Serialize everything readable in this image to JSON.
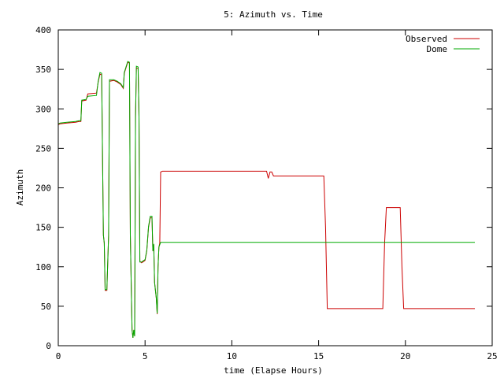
{
  "chart_data": {
    "type": "line",
    "title": "5: Azimuth vs. Time",
    "xlabel": "time (Elapse Hours)",
    "ylabel": "Azimuth",
    "xlim": [
      0,
      25
    ],
    "ylim": [
      0,
      400
    ],
    "xticks": [
      "0",
      "5",
      "10",
      "15",
      "20",
      "25"
    ],
    "yticks": [
      "0",
      "50",
      "100",
      "150",
      "200",
      "250",
      "300",
      "350",
      "400"
    ],
    "grid": false,
    "legend": "top-right",
    "series": [
      {
        "name": "Observed",
        "color": "#cc0000",
        "points": [
          [
            0.0,
            280
          ],
          [
            0.1,
            281
          ],
          [
            0.5,
            282
          ],
          [
            1.0,
            283
          ],
          [
            1.2,
            284
          ],
          [
            1.3,
            284
          ],
          [
            1.35,
            310
          ],
          [
            1.6,
            311
          ],
          [
            1.7,
            319
          ],
          [
            2.2,
            320
          ],
          [
            2.3,
            334
          ],
          [
            2.4,
            344
          ],
          [
            2.5,
            343
          ],
          [
            2.55,
            240
          ],
          [
            2.6,
            140
          ],
          [
            2.65,
            130
          ],
          [
            2.7,
            70
          ],
          [
            2.8,
            70
          ],
          [
            2.9,
            140
          ],
          [
            2.95,
            335
          ],
          [
            3.2,
            336
          ],
          [
            3.4,
            334
          ],
          [
            3.6,
            331
          ],
          [
            3.75,
            326
          ],
          [
            3.8,
            345
          ],
          [
            4.0,
            359
          ],
          [
            4.1,
            358
          ],
          [
            4.15,
            140
          ],
          [
            4.2,
            80
          ],
          [
            4.25,
            20
          ],
          [
            4.3,
            10
          ],
          [
            4.35,
            20
          ],
          [
            4.4,
            12
          ],
          [
            4.45,
            290
          ],
          [
            4.5,
            352
          ],
          [
            4.6,
            351
          ],
          [
            4.65,
            290
          ],
          [
            4.7,
            107
          ],
          [
            4.8,
            105
          ],
          [
            5.0,
            108
          ],
          [
            5.1,
            120
          ],
          [
            5.2,
            150
          ],
          [
            5.3,
            162
          ],
          [
            5.4,
            162
          ],
          [
            5.45,
            120
          ],
          [
            5.5,
            128
          ],
          [
            5.55,
            80
          ],
          [
            5.65,
            60
          ],
          [
            5.7,
            40
          ],
          [
            5.75,
            100
          ],
          [
            5.8,
            125
          ],
          [
            5.85,
            130
          ],
          [
            5.9,
            220
          ],
          [
            6.0,
            221
          ],
          [
            8.0,
            221
          ],
          [
            10.0,
            221
          ],
          [
            12.0,
            221
          ],
          [
            12.1,
            212
          ],
          [
            12.2,
            220
          ],
          [
            12.3,
            220
          ],
          [
            12.4,
            215
          ],
          [
            13.0,
            215
          ],
          [
            14.0,
            215
          ],
          [
            15.3,
            215
          ],
          [
            15.4,
            150
          ],
          [
            15.5,
            47
          ],
          [
            16.0,
            47
          ],
          [
            18.7,
            47
          ],
          [
            18.8,
            130
          ],
          [
            18.9,
            175
          ],
          [
            19.0,
            175
          ],
          [
            19.7,
            175
          ],
          [
            19.8,
            100
          ],
          [
            19.9,
            47
          ],
          [
            21.0,
            47
          ],
          [
            23.0,
            47
          ],
          [
            24.0,
            47
          ]
        ]
      },
      {
        "name": "Dome",
        "color": "#00aa00",
        "points": [
          [
            0.0,
            281
          ],
          [
            0.1,
            282
          ],
          [
            0.5,
            283
          ],
          [
            1.0,
            284
          ],
          [
            1.2,
            285
          ],
          [
            1.3,
            285
          ],
          [
            1.35,
            311
          ],
          [
            1.6,
            312
          ],
          [
            1.7,
            316
          ],
          [
            2.2,
            317
          ],
          [
            2.3,
            335
          ],
          [
            2.4,
            346
          ],
          [
            2.5,
            345
          ],
          [
            2.55,
            240
          ],
          [
            2.6,
            140
          ],
          [
            2.65,
            130
          ],
          [
            2.7,
            71
          ],
          [
            2.8,
            71
          ],
          [
            2.9,
            140
          ],
          [
            2.95,
            337
          ],
          [
            3.2,
            337
          ],
          [
            3.4,
            335
          ],
          [
            3.6,
            332
          ],
          [
            3.75,
            327
          ],
          [
            3.8,
            346
          ],
          [
            4.0,
            360
          ],
          [
            4.1,
            359
          ],
          [
            4.15,
            140
          ],
          [
            4.2,
            80
          ],
          [
            4.25,
            20
          ],
          [
            4.3,
            10
          ],
          [
            4.35,
            20
          ],
          [
            4.4,
            12
          ],
          [
            4.45,
            290
          ],
          [
            4.5,
            354
          ],
          [
            4.6,
            353
          ],
          [
            4.65,
            290
          ],
          [
            4.7,
            106
          ],
          [
            4.8,
            106
          ],
          [
            5.0,
            109
          ],
          [
            5.1,
            121
          ],
          [
            5.2,
            151
          ],
          [
            5.3,
            164
          ],
          [
            5.4,
            164
          ],
          [
            5.45,
            120
          ],
          [
            5.5,
            129
          ],
          [
            5.55,
            80
          ],
          [
            5.65,
            60
          ],
          [
            5.7,
            41
          ],
          [
            5.75,
            100
          ],
          [
            5.8,
            125
          ],
          [
            5.85,
            128
          ],
          [
            5.9,
            131
          ],
          [
            6.0,
            131
          ],
          [
            10.0,
            131
          ],
          [
            15.0,
            131
          ],
          [
            20.0,
            131
          ],
          [
            24.0,
            131
          ]
        ]
      }
    ]
  }
}
